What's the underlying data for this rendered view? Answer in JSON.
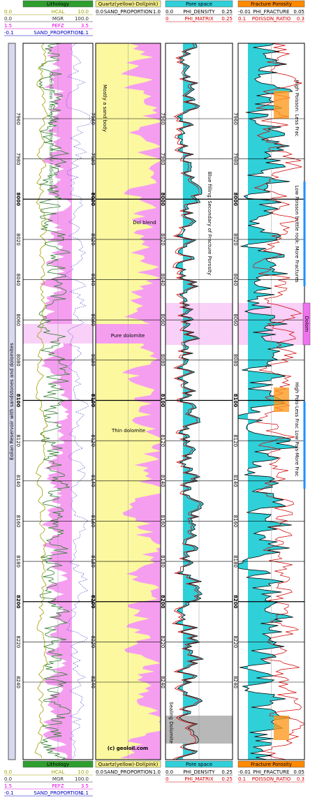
{
  "side_label": "Eolian Reservoir with sandstones and dolomites",
  "tracks": [
    {
      "title": "Lithology",
      "color": "#2e9e2e",
      "curves": [
        {
          "min": "0.0",
          "name": "HCAL",
          "max": "10.0",
          "color": "#a0a000"
        },
        {
          "min": "0.0",
          "name": "MGR",
          "max": "100.0",
          "color": "#333333"
        },
        {
          "min": "1.5",
          "name": "PEFZ",
          "max": "3.5",
          "color": "#e000e0"
        },
        {
          "min": "-0.1",
          "name": "SAND_PROPORTION",
          "max": "1.1",
          "color": "#0000c0"
        }
      ]
    },
    {
      "title": "Quartz(yellow)-Dol(pink)",
      "color": "#f5f08a",
      "curves": [
        {
          "min": "0.0",
          "name": "SAND_PROPORTION",
          "max": "1.0",
          "color": "#000000"
        }
      ]
    },
    {
      "title": "Pore space",
      "color": "#2fd0d8",
      "curves": [
        {
          "min": "0.0",
          "name": "PHI_DENSITY",
          "max": "0.25",
          "color": "#000000"
        },
        {
          "min": "0",
          "name": "PHI_MATRIX",
          "max": "0.25",
          "color": "#d00000"
        }
      ]
    },
    {
      "title": "Fracture Porosity",
      "color": "#ff8a00",
      "curves": [
        {
          "min": "-0.01",
          "name": "PHI_FRACTURE",
          "max": "0.05",
          "color": "#000000"
        },
        {
          "min": "0.1",
          "name": "POISSON_RATIO",
          "max": "0.3",
          "color": "#d00000"
        }
      ]
    }
  ],
  "depth_ticks": [
    7960,
    7980,
    8000,
    8020,
    8040,
    8060,
    8080,
    8100,
    8120,
    8140,
    8160,
    8180,
    8200,
    8220,
    8240
  ],
  "annotations": {
    "low_clay": "Overall low clay rocks. Some natural radioactivity",
    "sand_body": "Mostly a sand body",
    "dol_blend": "Dol blend",
    "pure_dolomite": "Pure dolomite",
    "thin_dolomite": "Thin dolomite",
    "copyright": "(c) geoloil.com",
    "blue_filling": "Blue filling: Secondary of Fracture Porosity",
    "sealing": "Sealing Dolomite",
    "high_poisson": "High Poisson: Less Frac",
    "low_poisson": "Low Poisson brittle rock: More Fractures",
    "mixed_poisson": "High Pois-Less Frac Low Pois-More Frac",
    "dolom": "Dolom"
  }
}
